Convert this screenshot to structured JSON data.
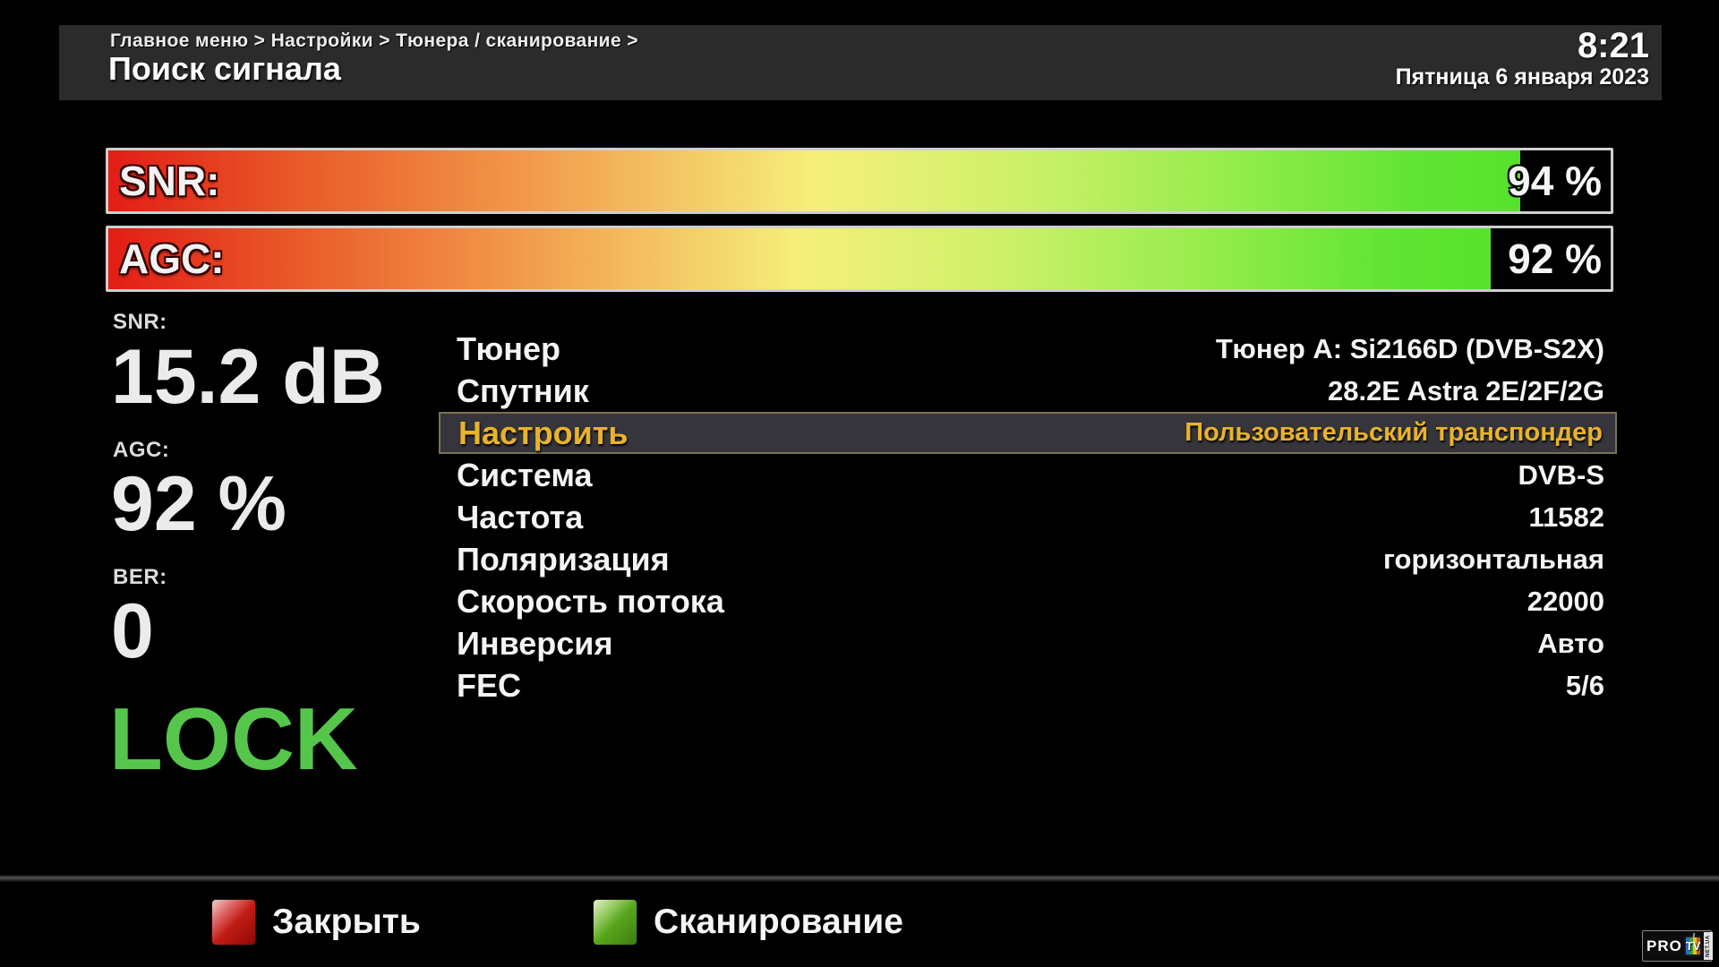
{
  "header": {
    "breadcrumb": "Главное меню > Настройки > Тюнера / сканирование >",
    "title": "Поиск сигнала",
    "time": "8:21",
    "date": "Пятница  6 января 2023"
  },
  "signal_bars": [
    {
      "label": "SNR:",
      "value": "94 %",
      "percent": 94
    },
    {
      "label": "AGC:",
      "value": "92 %",
      "percent": 92
    }
  ],
  "metrics": [
    {
      "label": "SNR:",
      "value": "15.2 dB"
    },
    {
      "label": "AGC:",
      "value": "92 %"
    },
    {
      "label": "BER:",
      "value": "0"
    }
  ],
  "lock_status": "LOCK",
  "settings": {
    "selected_index": 2,
    "rows": [
      {
        "label": "Тюнер",
        "value": "Тюнер A: Si2166D (DVB-S2X)"
      },
      {
        "label": "Спутник",
        "value": "28.2E Astra 2E/2F/2G"
      },
      {
        "label": "Настроить",
        "value": "Пользовательский транспондер"
      },
      {
        "label": "Система",
        "value": "DVB-S"
      },
      {
        "label": "Частота",
        "value": "11582"
      },
      {
        "label": "Поляризация",
        "value": "горизонтальная"
      },
      {
        "label": "Скорость потока",
        "value": "22000"
      },
      {
        "label": "Инверсия",
        "value": "Авто"
      },
      {
        "label": "FEC",
        "value": "5/6"
      }
    ]
  },
  "footer": {
    "buttons": [
      {
        "key": "red",
        "label": "Закрыть",
        "color": "#c11d14"
      },
      {
        "key": "green",
        "label": "Сканирование",
        "color": "#58a51c"
      }
    ]
  },
  "logo": {
    "pro": "PRO",
    "tv": "TV",
    "net": "NET.UA"
  },
  "colors": {
    "header_bg": "#2b2b2b",
    "highlight_bg": "#35353b",
    "highlight_border": "#7a7158",
    "accent_gold": "#e9b32a",
    "lock_green": "#55c64b",
    "bar_gradient_start": "#e21d15",
    "bar_gradient_end": "#55e22c"
  }
}
